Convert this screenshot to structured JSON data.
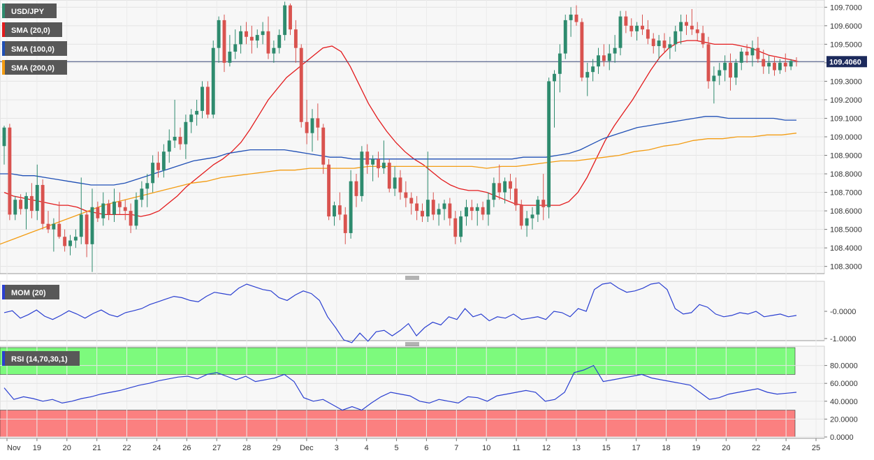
{
  "main": {
    "symbol": "USD/JPY",
    "indicators": [
      {
        "label": "SMA (20,0)",
        "color": "#e31a1c"
      },
      {
        "label": "SMA (100,0)",
        "color": "#1f4fb5"
      },
      {
        "label": "SMA (200,0)",
        "color": "#f39c12"
      }
    ],
    "price_axis": [
      "109.7000",
      "109.6000",
      "109.5000",
      "109.4000",
      "109.3000",
      "109.2000",
      "109.1000",
      "109.0000",
      "108.9000",
      "108.8000",
      "108.7000",
      "108.6000",
      "108.5000",
      "108.4000",
      "108.3000"
    ],
    "last_price": "109.4060",
    "last_price_value": 109.406
  },
  "mom": {
    "label": "MOM (20)",
    "axis": [
      "-0.0000",
      "-1.0000"
    ]
  },
  "rsi": {
    "label": "RSI (14,70,30,1)",
    "axis": [
      "80.0000",
      "60.0000",
      "40.0000",
      "20.0000",
      "0.0000"
    ],
    "overbought": 70,
    "oversold": 30
  },
  "x_axis": [
    "Nov",
    "19",
    "20",
    "21",
    "22",
    "24",
    "26",
    "27",
    "28",
    "29",
    "Dec",
    "3",
    "4",
    "5",
    "6",
    "7",
    "10",
    "11",
    "12",
    "13",
    "15",
    "17",
    "18",
    "19",
    "20",
    "22",
    "24",
    "25"
  ],
  "chart_data": {
    "type": "candlestick",
    "title": "USD/JPY",
    "ylim": [
      108.27,
      109.73
    ],
    "candles": [
      [
        108.95,
        109.06,
        108.85,
        109.05
      ],
      [
        109.05,
        109.07,
        108.55,
        108.58
      ],
      [
        108.58,
        108.68,
        108.55,
        108.66
      ],
      [
        108.66,
        108.69,
        108.58,
        108.61
      ],
      [
        108.61,
        108.7,
        108.5,
        108.68
      ],
      [
        108.68,
        108.75,
        108.56,
        108.6
      ],
      [
        108.6,
        108.85,
        108.55,
        108.74
      ],
      [
        108.74,
        108.77,
        108.5,
        108.53
      ],
      [
        108.53,
        108.6,
        108.48,
        108.5
      ],
      [
        108.5,
        108.56,
        108.38,
        108.53
      ],
      [
        108.53,
        108.65,
        108.45,
        108.46
      ],
      [
        108.46,
        108.5,
        108.38,
        108.41
      ],
      [
        108.41,
        108.47,
        108.36,
        108.44
      ],
      [
        108.44,
        108.5,
        108.4,
        108.46
      ],
      [
        108.46,
        108.78,
        108.42,
        108.58
      ],
      [
        108.58,
        108.6,
        108.35,
        108.42
      ],
      [
        108.42,
        108.72,
        108.27,
        108.62
      ],
      [
        108.62,
        108.65,
        108.54,
        108.56
      ],
      [
        108.56,
        108.7,
        108.52,
        108.64
      ],
      [
        108.64,
        108.66,
        108.55,
        108.58
      ],
      [
        108.58,
        108.72,
        108.54,
        108.65
      ],
      [
        108.65,
        108.7,
        108.58,
        108.62
      ],
      [
        108.62,
        108.66,
        108.55,
        108.6
      ],
      [
        108.6,
        108.64,
        108.48,
        108.52
      ],
      [
        108.52,
        108.7,
        108.5,
        108.66
      ],
      [
        108.66,
        108.76,
        108.62,
        108.72
      ],
      [
        108.72,
        108.8,
        108.62,
        108.75
      ],
      [
        108.75,
        108.9,
        108.7,
        108.86
      ],
      [
        108.86,
        108.92,
        108.78,
        108.82
      ],
      [
        108.82,
        108.96,
        108.78,
        108.92
      ],
      [
        108.92,
        109.04,
        108.86,
        108.98
      ],
      [
        108.98,
        109.2,
        108.94,
        109.0
      ],
      [
        109.0,
        109.05,
        108.93,
        108.96
      ],
      [
        108.96,
        109.12,
        108.88,
        109.08
      ],
      [
        109.08,
        109.15,
        109.02,
        109.12
      ],
      [
        109.12,
        109.2,
        109.06,
        109.14
      ],
      [
        109.14,
        109.3,
        109.1,
        109.27
      ],
      [
        109.27,
        109.3,
        109.1,
        109.12
      ],
      [
        109.12,
        109.52,
        109.1,
        109.48
      ],
      [
        109.48,
        109.65,
        109.4,
        109.63
      ],
      [
        109.63,
        109.66,
        109.35,
        109.4
      ],
      [
        109.4,
        109.55,
        109.38,
        109.46
      ],
      [
        109.46,
        109.58,
        109.42,
        109.5
      ],
      [
        109.5,
        109.6,
        109.45,
        109.57
      ],
      [
        109.57,
        109.62,
        109.5,
        109.54
      ],
      [
        109.54,
        109.6,
        109.45,
        109.52
      ],
      [
        109.52,
        109.58,
        109.48,
        109.55
      ],
      [
        109.55,
        109.62,
        109.5,
        109.57
      ],
      [
        109.57,
        109.65,
        109.42,
        109.45
      ],
      [
        109.45,
        109.52,
        109.4,
        109.48
      ],
      [
        109.48,
        109.58,
        109.45,
        109.55
      ],
      [
        109.55,
        109.73,
        109.52,
        109.71
      ],
      [
        109.71,
        109.72,
        109.55,
        109.58
      ],
      [
        109.58,
        109.63,
        109.4,
        109.48
      ],
      [
        109.48,
        109.5,
        109.05,
        109.08
      ],
      [
        109.08,
        109.2,
        108.96,
        109.02
      ],
      [
        109.02,
        109.15,
        108.92,
        109.1
      ],
      [
        109.1,
        109.18,
        108.98,
        109.05
      ],
      [
        109.05,
        109.07,
        108.8,
        108.85
      ],
      [
        108.85,
        108.88,
        108.55,
        108.57
      ],
      [
        108.57,
        108.65,
        108.52,
        108.63
      ],
      [
        108.63,
        108.7,
        108.55,
        108.58
      ],
      [
        108.58,
        108.62,
        108.42,
        108.48
      ],
      [
        108.48,
        108.82,
        108.45,
        108.76
      ],
      [
        108.76,
        108.8,
        108.62,
        108.68
      ],
      [
        108.68,
        108.95,
        108.65,
        108.92
      ],
      [
        108.92,
        108.96,
        108.8,
        108.85
      ],
      [
        108.85,
        108.9,
        108.76,
        108.88
      ],
      [
        108.88,
        108.92,
        108.78,
        108.83
      ],
      [
        108.83,
        108.98,
        108.8,
        108.86
      ],
      [
        108.86,
        108.88,
        108.7,
        108.72
      ],
      [
        108.72,
        108.84,
        108.68,
        108.78
      ],
      [
        108.78,
        108.82,
        108.66,
        108.7
      ],
      [
        108.7,
        108.76,
        108.62,
        108.67
      ],
      [
        108.67,
        108.7,
        108.58,
        108.64
      ],
      [
        108.64,
        108.68,
        108.55,
        108.6
      ],
      [
        108.6,
        108.64,
        108.54,
        108.57
      ],
      [
        108.57,
        108.92,
        108.54,
        108.66
      ],
      [
        108.66,
        108.7,
        108.55,
        108.58
      ],
      [
        108.58,
        108.64,
        108.52,
        108.61
      ],
      [
        108.61,
        108.66,
        108.55,
        108.64
      ],
      [
        108.64,
        108.67,
        108.52,
        108.56
      ],
      [
        108.56,
        108.6,
        108.42,
        108.46
      ],
      [
        108.46,
        108.6,
        108.43,
        108.57
      ],
      [
        108.57,
        108.66,
        108.52,
        108.62
      ],
      [
        108.62,
        108.66,
        108.55,
        108.6
      ],
      [
        108.6,
        108.64,
        108.52,
        108.62
      ],
      [
        108.62,
        108.65,
        108.55,
        108.58
      ],
      [
        108.58,
        108.7,
        108.52,
        108.66
      ],
      [
        108.66,
        108.78,
        108.62,
        108.75
      ],
      [
        108.75,
        108.85,
        108.66,
        108.7
      ],
      [
        108.7,
        108.78,
        108.64,
        108.76
      ],
      [
        108.76,
        108.8,
        108.66,
        108.72
      ],
      [
        108.72,
        108.78,
        108.6,
        108.63
      ],
      [
        108.63,
        108.66,
        108.5,
        108.52
      ],
      [
        108.52,
        108.6,
        108.46,
        108.56
      ],
      [
        108.56,
        108.62,
        108.5,
        108.58
      ],
      [
        108.58,
        108.68,
        108.54,
        108.66
      ],
      [
        108.66,
        108.8,
        108.55,
        108.62
      ],
      [
        108.62,
        109.32,
        108.56,
        109.3
      ],
      [
        109.3,
        109.36,
        109.05,
        109.34
      ],
      [
        109.34,
        109.5,
        109.24,
        109.45
      ],
      [
        109.45,
        109.66,
        109.42,
        109.63
      ],
      [
        109.63,
        109.7,
        109.54,
        109.66
      ],
      [
        109.66,
        109.71,
        109.6,
        109.62
      ],
      [
        109.62,
        109.64,
        109.3,
        109.32
      ],
      [
        109.32,
        109.4,
        109.22,
        109.35
      ],
      [
        109.35,
        109.42,
        109.3,
        109.38
      ],
      [
        109.38,
        109.48,
        109.34,
        109.44
      ],
      [
        109.44,
        109.5,
        109.38,
        109.41
      ],
      [
        109.41,
        109.5,
        109.36,
        109.45
      ],
      [
        109.45,
        109.55,
        109.4,
        109.48
      ],
      [
        109.48,
        109.68,
        109.44,
        109.65
      ],
      [
        109.65,
        109.68,
        109.56,
        109.6
      ],
      [
        109.6,
        109.64,
        109.54,
        109.57
      ],
      [
        109.57,
        109.62,
        109.52,
        109.6
      ],
      [
        109.6,
        109.66,
        109.55,
        109.58
      ],
      [
        109.58,
        109.63,
        109.5,
        109.53
      ],
      [
        109.53,
        109.56,
        109.45,
        109.49
      ],
      [
        109.49,
        109.55,
        109.42,
        109.52
      ],
      [
        109.52,
        109.56,
        109.46,
        109.48
      ],
      [
        109.48,
        109.54,
        109.42,
        109.5
      ],
      [
        109.5,
        109.6,
        109.46,
        109.57
      ],
      [
        109.57,
        109.66,
        109.5,
        109.62
      ],
      [
        109.62,
        109.66,
        109.55,
        109.6
      ],
      [
        109.6,
        109.69,
        109.55,
        109.58
      ],
      [
        109.58,
        109.62,
        109.52,
        109.56
      ],
      [
        109.56,
        109.6,
        109.48,
        109.5
      ],
      [
        109.5,
        109.54,
        109.26,
        109.3
      ],
      [
        109.3,
        109.38,
        109.18,
        109.33
      ],
      [
        109.33,
        109.4,
        109.28,
        109.36
      ],
      [
        109.36,
        109.44,
        109.3,
        109.4
      ],
      [
        109.4,
        109.45,
        109.25,
        109.32
      ],
      [
        109.32,
        109.42,
        109.28,
        109.4
      ],
      [
        109.4,
        109.48,
        109.36,
        109.46
      ],
      [
        109.46,
        109.5,
        109.4,
        109.44
      ],
      [
        109.44,
        109.52,
        109.38,
        109.48
      ],
      [
        109.48,
        109.54,
        109.4,
        109.42
      ],
      [
        109.42,
        109.47,
        109.34,
        109.38
      ],
      [
        109.38,
        109.44,
        109.34,
        109.4
      ],
      [
        109.4,
        109.43,
        109.33,
        109.36
      ],
      [
        109.36,
        109.42,
        109.34,
        109.4
      ],
      [
        109.4,
        109.45,
        109.35,
        109.38
      ],
      [
        109.38,
        109.42,
        109.36,
        109.41
      ],
      [
        109.41,
        109.43,
        109.38,
        109.406
      ]
    ],
    "series": [
      {
        "name": "SMA (20,0)",
        "values": [
          108.7,
          108.68,
          108.67,
          108.66,
          108.65,
          108.64,
          108.63,
          108.63,
          108.62,
          108.6,
          108.59,
          108.58,
          108.58,
          108.58,
          108.58,
          108.57,
          108.58,
          108.6,
          108.64,
          108.68,
          108.73,
          108.77,
          108.81,
          108.85,
          108.88,
          108.92,
          108.97,
          109.04,
          109.12,
          109.2,
          109.26,
          109.32,
          109.36,
          109.4,
          109.44,
          109.48,
          109.49,
          109.46,
          109.38,
          109.28,
          109.18,
          109.1,
          109.03,
          108.97,
          108.92,
          108.88,
          108.85,
          108.81,
          108.77,
          108.74,
          108.72,
          108.71,
          108.71,
          108.7,
          108.68,
          108.66,
          108.64,
          108.63,
          108.63,
          108.63,
          108.63,
          108.63,
          108.65,
          108.7,
          108.78,
          108.88,
          108.98,
          109.06,
          109.13,
          109.2,
          109.28,
          109.36,
          109.43,
          109.48,
          109.51,
          109.52,
          109.52,
          109.51,
          109.5,
          109.5,
          109.5,
          109.49,
          109.48,
          109.46,
          109.44,
          109.43,
          109.42,
          109.41
        ]
      },
      {
        "name": "SMA (100,0)",
        "values": [
          108.8,
          108.8,
          108.79,
          108.79,
          108.78,
          108.77,
          108.76,
          108.75,
          108.74,
          108.74,
          108.74,
          108.75,
          108.77,
          108.79,
          108.81,
          108.83,
          108.85,
          108.87,
          108.88,
          108.89,
          108.91,
          108.92,
          108.93,
          108.93,
          108.93,
          108.93,
          108.92,
          108.91,
          108.9,
          108.89,
          108.89,
          108.88,
          108.88,
          108.88,
          108.88,
          108.88,
          108.88,
          108.88,
          108.88,
          108.88,
          108.88,
          108.88,
          108.88,
          108.88,
          108.88,
          108.88,
          108.89,
          108.89,
          108.89,
          108.9,
          108.91,
          108.93,
          108.96,
          108.99,
          109.01,
          109.03,
          109.05,
          109.06,
          109.07,
          109.08,
          109.09,
          109.1,
          109.11,
          109.11,
          109.1,
          109.1,
          109.1,
          109.1,
          109.1,
          109.09,
          109.09
        ]
      },
      {
        "name": "SMA (200,0)",
        "values": [
          108.42,
          108.45,
          108.48,
          108.51,
          108.54,
          108.57,
          108.6,
          108.63,
          108.65,
          108.67,
          108.69,
          108.71,
          108.73,
          108.75,
          108.76,
          108.78,
          108.79,
          108.8,
          108.81,
          108.82,
          108.82,
          108.83,
          108.83,
          108.83,
          108.83,
          108.84,
          108.84,
          108.84,
          108.84,
          108.84,
          108.84,
          108.84,
          108.84,
          108.83,
          108.84,
          108.84,
          108.85,
          108.86,
          108.87,
          108.87,
          108.88,
          108.89,
          108.9,
          108.92,
          108.93,
          108.95,
          108.96,
          108.98,
          108.99,
          108.99,
          109.0,
          109.0,
          109.01,
          109.01,
          109.02
        ]
      }
    ],
    "mom": [
      -0.05,
      0.02,
      -0.25,
      -0.12,
      0.05,
      -0.18,
      -0.3,
      -0.15,
      0.02,
      -0.1,
      -0.25,
      -0.08,
      0.05,
      -0.12,
      -0.2,
      -0.05,
      0.02,
      0.1,
      0.25,
      0.35,
      0.45,
      0.55,
      0.5,
      0.4,
      0.35,
      0.55,
      0.7,
      0.65,
      0.6,
      0.85,
      1.0,
      0.9,
      0.8,
      0.75,
      0.5,
      0.4,
      0.6,
      0.75,
      0.65,
      0.4,
      -0.2,
      -0.6,
      -1.05,
      -1.15,
      -0.8,
      -1.1,
      -0.75,
      -0.7,
      -0.9,
      -0.7,
      -0.45,
      -0.9,
      -0.6,
      -0.4,
      -0.5,
      -0.2,
      -0.3,
      0.1,
      -0.2,
      -0.1,
      -0.35,
      -0.2,
      -0.25,
      -0.1,
      -0.3,
      -0.25,
      -0.2,
      -0.3,
      0.0,
      -0.05,
      -0.2,
      0.1,
      0.0,
      0.8,
      1.0,
      1.05,
      0.85,
      0.7,
      0.75,
      0.85,
      1.0,
      1.05,
      0.8,
      0.1,
      -0.1,
      -0.05,
      0.25,
      0.15,
      -0.1,
      -0.2,
      -0.15,
      -0.05,
      -0.1,
      0.0,
      -0.2,
      -0.15,
      -0.1,
      -0.2,
      -0.15
    ],
    "rsi": [
      55,
      42,
      45,
      43,
      40,
      42,
      38,
      40,
      43,
      45,
      48,
      50,
      52,
      55,
      58,
      60,
      63,
      65,
      67,
      68,
      65,
      70,
      72,
      68,
      64,
      68,
      62,
      64,
      66,
      70,
      62,
      44,
      40,
      42,
      36,
      30,
      34,
      30,
      38,
      45,
      50,
      48,
      46,
      40,
      38,
      42,
      40,
      38,
      45,
      44,
      40,
      46,
      48,
      50,
      52,
      50,
      40,
      42,
      50,
      72,
      75,
      80,
      62,
      64,
      66,
      68,
      70,
      66,
      64,
      62,
      60,
      58,
      50,
      42,
      44,
      48,
      50,
      52,
      54,
      50,
      48,
      49,
      50
    ]
  }
}
